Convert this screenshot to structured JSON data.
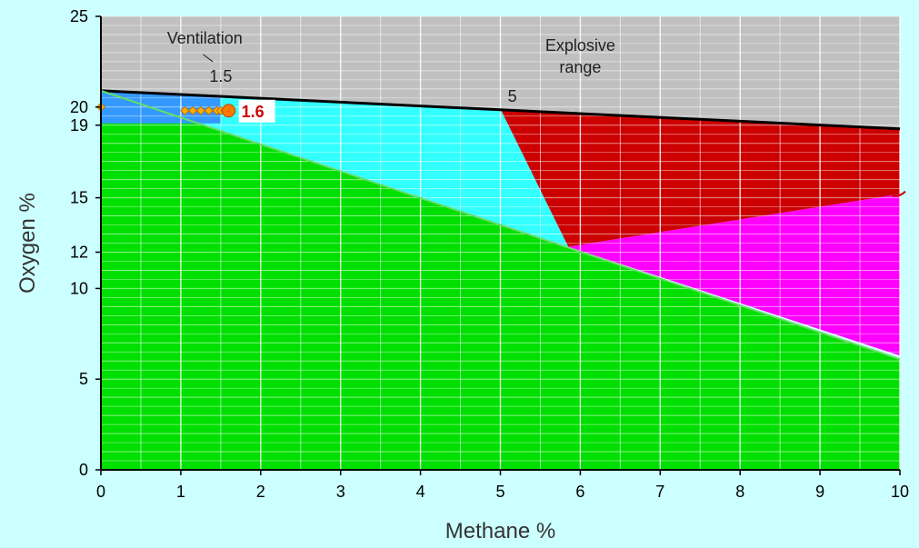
{
  "chart_data": {
    "type": "area",
    "xlabel": "Methane %",
    "ylabel": "Oxygen %",
    "xlim": [
      0,
      10
    ],
    "ylim": [
      0,
      25
    ],
    "x_ticks": [
      "0",
      "1",
      "2",
      "3",
      "4",
      "5",
      "6",
      "7",
      "8",
      "9",
      "10"
    ],
    "y_ticks": [
      {
        "value": 0,
        "label": "0"
      },
      {
        "value": 5,
        "label": "5"
      },
      {
        "value": 10,
        "label": "10"
      },
      {
        "value": 12,
        "label": "12"
      },
      {
        "value": 15,
        "label": "15"
      },
      {
        "value": 19,
        "label": "19"
      },
      {
        "value": 20,
        "label": "20"
      },
      {
        "value": 25,
        "label": "25"
      }
    ],
    "x_grid_step": 0.5,
    "y_grid_step": 0.5,
    "grid": true,
    "regions": [
      {
        "id": "gray",
        "color": "#c0c0c0",
        "points": [
          [
            0,
            20.9
          ],
          [
            10,
            18.8
          ],
          [
            10,
            25
          ],
          [
            0,
            25
          ]
        ]
      },
      {
        "id": "green",
        "color": "#00e000",
        "points": [
          [
            0,
            0
          ],
          [
            10,
            0
          ],
          [
            10,
            6.1
          ],
          [
            0,
            20.9
          ]
        ]
      },
      {
        "id": "cyan",
        "color": "#33ffff",
        "points": [
          [
            0,
            20.9
          ],
          [
            5,
            19.9
          ],
          [
            5.85,
            12.3
          ],
          [
            0,
            20.9
          ]
        ]
      },
      {
        "id": "red",
        "color": "#cc0000",
        "points": [
          [
            5,
            19.9
          ],
          [
            10,
            18.8
          ],
          [
            10,
            15.2
          ],
          [
            5.85,
            12.3
          ]
        ]
      },
      {
        "id": "magenta",
        "color": "#ff00ff",
        "points": [
          [
            5.85,
            12.3
          ],
          [
            10,
            15.2
          ],
          [
            10,
            6.3
          ]
        ]
      },
      {
        "id": "blue-box",
        "color": "#3399ff",
        "points": [
          [
            0,
            20.9
          ],
          [
            1.5,
            20.6
          ],
          [
            1.5,
            19.1
          ],
          [
            0,
            19.1
          ]
        ]
      }
    ],
    "lines": [
      {
        "id": "upper-limit",
        "color": "#000000",
        "points": [
          [
            0,
            20.9
          ],
          [
            10,
            18.8
          ]
        ]
      },
      {
        "id": "lower-limit",
        "color": "#66dd66",
        "points": [
          [
            0,
            20.9
          ],
          [
            10,
            6.1
          ]
        ]
      }
    ],
    "series": [
      {
        "x": [
          0,
          1.05,
          1.15,
          1.25,
          1.35,
          1.45,
          1.5,
          1.55,
          1.6
        ],
        "y": [
          20,
          19.8,
          19.8,
          19.8,
          19.8,
          19.8,
          19.8,
          19.8,
          19.8
        ],
        "color": "#ffaa00"
      }
    ],
    "current_point": {
      "x": 1.6,
      "y": 19.8,
      "label": "1.6"
    },
    "annotations": [
      {
        "text": "Ventilation",
        "x": 1.3,
        "y": 23.5
      },
      {
        "text": "1.5",
        "x": 1.5,
        "y": 21.4
      },
      {
        "text": "Explosive",
        "x": 6,
        "y": 23.1
      },
      {
        "text": "range",
        "x": 6,
        "y": 21.9
      },
      {
        "text": "5",
        "x": 5.15,
        "y": 20.3
      }
    ],
    "colors": {
      "background": "#ccffff",
      "gray": "#c0c0c0",
      "green": "#00e000",
      "cyan": "#33ffff",
      "red": "#cc0000",
      "magenta": "#ff00ff",
      "marker": "#ffaa00",
      "current_marker": "#ff7700",
      "label_red": "#cc0000"
    }
  }
}
